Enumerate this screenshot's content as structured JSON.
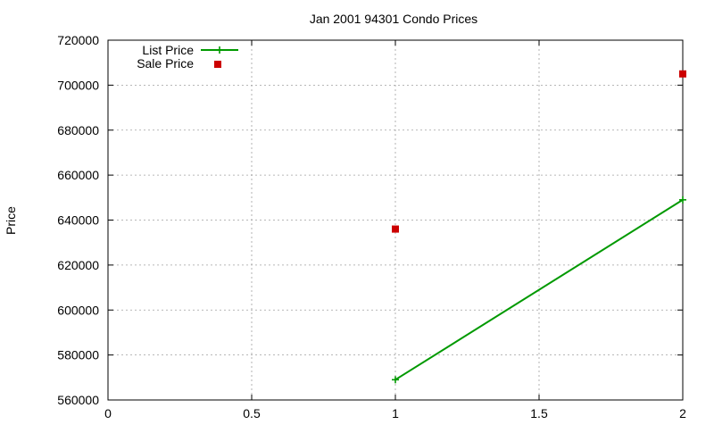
{
  "chart_data": {
    "type": "line",
    "title": "Jan 2001 94301 Condo Prices",
    "xlabel": "",
    "ylabel": "Price",
    "xlim": [
      0,
      2
    ],
    "ylim": [
      560000,
      720000
    ],
    "x_ticks": [
      0,
      0.5,
      1,
      1.5,
      2
    ],
    "y_ticks": [
      560000,
      580000,
      600000,
      620000,
      640000,
      660000,
      680000,
      700000,
      720000
    ],
    "grid": true,
    "legend_position": "top-left",
    "series": [
      {
        "name": "List Price",
        "style": "linespoints",
        "color": "#009900",
        "x": [
          1,
          2
        ],
        "y": [
          569000,
          649000
        ]
      },
      {
        "name": "Sale Price",
        "style": "points",
        "color": "#cc0000",
        "x": [
          1,
          2
        ],
        "y": [
          636000,
          705000
        ]
      }
    ]
  }
}
